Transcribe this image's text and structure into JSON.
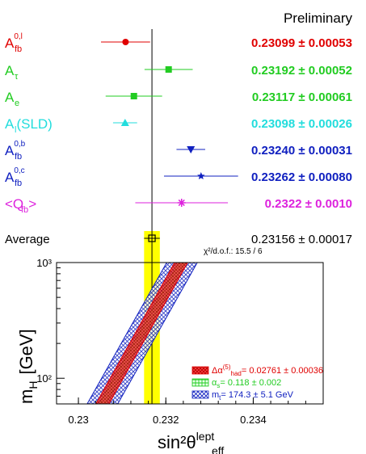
{
  "header": {
    "status": "Preliminary"
  },
  "chart_data": [
    {
      "type": "scatter",
      "subtype": "forest-plot",
      "xlim": [
        0.2295,
        0.2336
      ],
      "reference_line_x": 0.23156,
      "measurements": [
        {
          "label": "A",
          "sub": "fb",
          "sup": "0,l",
          "value_text": "0.23099 ± 0.00053",
          "x": 0.23099,
          "err": 0.00053,
          "marker": "circle",
          "color": "#e00000"
        },
        {
          "label": "A",
          "sub": "τ",
          "sup": "",
          "value_text": "0.23192 ± 0.00052",
          "x": 0.23192,
          "err": 0.00052,
          "marker": "square",
          "color": "#22cc22"
        },
        {
          "label": "A",
          "sub": "e",
          "sup": "",
          "value_text": "0.23117 ± 0.00061",
          "x": 0.23117,
          "err": 0.00061,
          "marker": "square",
          "color": "#22cc22"
        },
        {
          "label": "A",
          "sub": "l",
          "sup": "",
          "suffix": "(SLD)",
          "value_text": "0.23098 ± 0.00026",
          "x": 0.23098,
          "err": 0.00026,
          "marker": "triangle-up",
          "color": "#22dddd"
        },
        {
          "label": "A",
          "sub": "fb",
          "sup": "0,b",
          "value_text": "0.23240 ± 0.00031",
          "x": 0.2324,
          "err": 0.00031,
          "marker": "triangle-down",
          "color": "#1020c0"
        },
        {
          "label": "A",
          "sub": "fb",
          "sup": "0,c",
          "value_text": "0.23262 ± 0.00080",
          "x": 0.23262,
          "err": 0.0008,
          "marker": "star",
          "color": "#1020c0"
        },
        {
          "label": "<Q",
          "sub": "fb",
          "sup": "",
          "suffix": ">",
          "value_text": "0.2322 ± 0.0010",
          "x": 0.2322,
          "err": 0.001,
          "marker": "asterisk",
          "color": "#dd22dd"
        }
      ],
      "average": {
        "label": "Average",
        "value_text": "0.23156 ± 0.00017",
        "x": 0.23156,
        "err": 0.00017,
        "color": "#000000",
        "band_color": "#ffff00",
        "chi2_text": "χ²/d.o.f.: 15.5 / 6"
      }
    },
    {
      "type": "area",
      "x_scale": "linear",
      "y_scale": "log",
      "xlim": [
        0.2295,
        0.2356
      ],
      "ylim": [
        60,
        1000
      ],
      "x_ticks": [
        "0.23",
        "0.232",
        "0.234"
      ],
      "y_ticks": [
        "10²",
        "10³"
      ],
      "xlabel_main": "sin²θ",
      "xlabel_sup": "lept",
      "xlabel_sub": "eff",
      "ylabel_main": "m",
      "ylabel_sub": "H",
      "ylabel_unit": "[GeV]",
      "bands": [
        {
          "name": "mt",
          "legend_main": "m",
          "legend_sub": "t",
          "legend_rest": "= 174.3 ± 5.1 GeV",
          "color": "#1020c0",
          "x_at_ymin": [
            0.2302,
            0.2309
          ],
          "x_at_ymax": [
            0.23202,
            0.23272
          ]
        },
        {
          "name": "alphas",
          "legend_main": "α",
          "legend_sub": "s",
          "legend_rest": "= 0.118 ± 0.002",
          "color": "#22cc22",
          "x_at_ymin": [
            0.23048,
            0.23062
          ],
          "x_at_ymax": [
            0.2323,
            0.23244
          ]
        },
        {
          "name": "dalpha",
          "legend_main": "Δα",
          "legend_sup": "(5)",
          "legend_sub": "had",
          "legend_rest": "= 0.02761 ± 0.00036",
          "color": "#e00000",
          "x_at_ymin": [
            0.2304,
            0.2307
          ],
          "x_at_ymax": [
            0.2322,
            0.2325
          ]
        }
      ],
      "average_band": {
        "x_min": 0.23139,
        "x_max": 0.23173,
        "color": "#ffff00"
      }
    }
  ]
}
